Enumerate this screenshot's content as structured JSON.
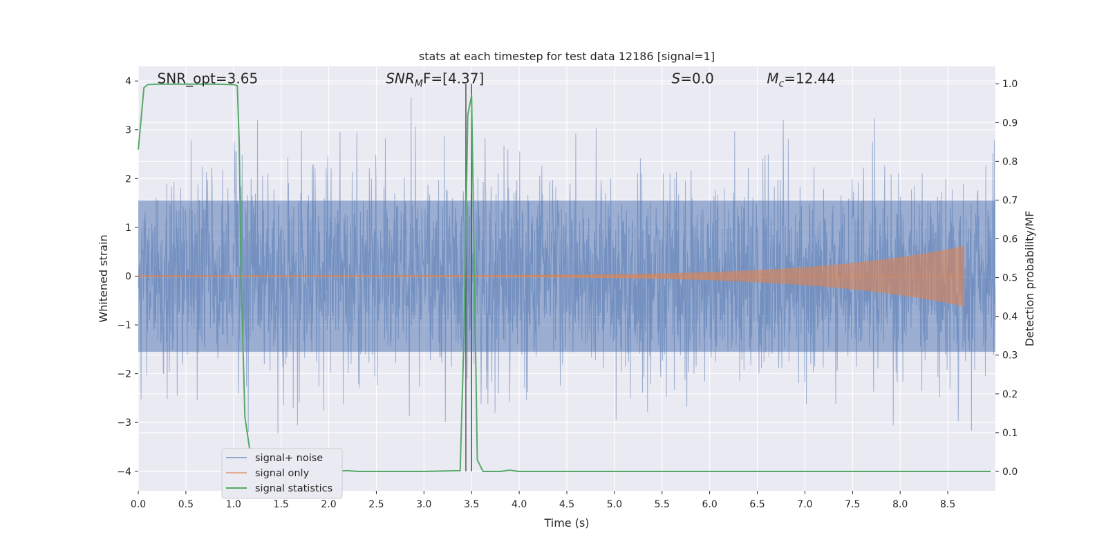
{
  "chart_data": {
    "type": "line",
    "title": "stats at each timestep for test data 12186 [signal=1]",
    "xlabel": "Time (s)",
    "ylabel_left": "Whitened strain",
    "ylabel_right": "Detection probability/MF",
    "xlim": [
      0.0,
      9.0
    ],
    "ylim_left": [
      -4.4,
      4.3
    ],
    "ylim_right": [
      -0.05,
      1.045
    ],
    "x_ticks": [
      "0.0",
      "0.5",
      "1.0",
      "1.5",
      "2.0",
      "2.5",
      "3.0",
      "3.5",
      "4.0",
      "4.5",
      "5.0",
      "5.5",
      "6.0",
      "6.5",
      "7.0",
      "7.5",
      "8.0",
      "8.5"
    ],
    "left_ticks": [
      "−4",
      "−3",
      "−2",
      "−1",
      "0",
      "1",
      "2",
      "3",
      "4"
    ],
    "right_ticks": [
      "0.0",
      "0.1",
      "0.2",
      "0.3",
      "0.4",
      "0.5",
      "0.6",
      "0.7",
      "0.8",
      "0.9",
      "1.0"
    ],
    "grid": true,
    "legend_position": "lower-left",
    "annotations": [
      {
        "text": "SNR_opt=3.65",
        "x": 0.2,
        "y": 4.05
      },
      {
        "text": "SNR",
        "sub": "M",
        "suffix": "F=[4.37]",
        "italic": true,
        "x": 2.6,
        "y": 4.05
      },
      {
        "text": "S",
        "suffix": "=0.0",
        "italic": true,
        "x": 5.6,
        "y": 4.05
      },
      {
        "text": "M",
        "sub": "c",
        "suffix": "=12.44",
        "italic": true,
        "x": 6.6,
        "y": 4.05
      }
    ],
    "vertical_lines": [
      3.44,
      3.5
    ],
    "series": [
      {
        "name": "signal+ noise",
        "color": "#4c72b0",
        "kind": "noise",
        "x_range": [
          0.0,
          9.0
        ],
        "core_amplitude": 1.55,
        "spike_max": 4.0,
        "spike_min": -4.0
      },
      {
        "name": "signal only",
        "color": "#dd8452",
        "kind": "chirp",
        "x_range": [
          0.0,
          8.67
        ],
        "peak_amplitude": 0.6
      },
      {
        "name": "signal statistics",
        "color": "#55a868",
        "kind": "probability",
        "x": [
          0.0,
          0.06,
          0.1,
          0.2,
          0.5,
          0.8,
          1.0,
          1.04,
          1.06,
          1.08,
          1.12,
          1.18,
          1.25,
          1.4,
          2.0,
          2.2,
          2.3,
          3.0,
          3.38,
          3.42,
          3.46,
          3.5,
          3.56,
          3.62,
          3.7,
          3.8,
          3.9,
          4.0,
          5.0,
          6.0,
          7.0,
          8.0,
          8.95
        ],
        "y": [
          0.83,
          0.99,
          0.998,
          0.999,
          0.999,
          0.999,
          0.998,
          0.995,
          0.85,
          0.5,
          0.14,
          0.04,
          0.005,
          0.001,
          0.0,
          0.002,
          0.0,
          0.0,
          0.002,
          0.35,
          0.92,
          0.97,
          0.03,
          0.0,
          0.0,
          0.0,
          0.003,
          0.0,
          0.0,
          0.0,
          0.0,
          0.0,
          0.0
        ]
      }
    ]
  },
  "colors": {
    "axes_bg": "#eaeaf2",
    "grid": "#ffffff",
    "legend_bg": "#eaeaf2",
    "vline": "#555555"
  }
}
